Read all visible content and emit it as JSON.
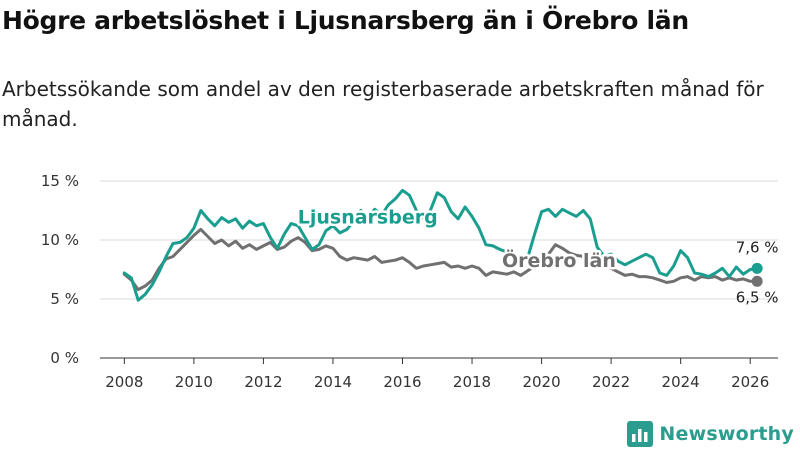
{
  "header": {
    "title": "Högre arbetslöshet i Ljusnarsberg än i Örebro län",
    "subtitle": "Arbetssökande som andel av den registerbaserade arbetskraften månad för månad."
  },
  "brand": {
    "name": "Newsworthy",
    "icon": "newsworthy-logo-icon",
    "color": "#2a9d8f"
  },
  "chart_data": {
    "type": "line",
    "title": "",
    "xlabel": "",
    "ylabel": "",
    "xlim": [
      2007.3,
      2026.8
    ],
    "ylim": [
      0,
      15
    ],
    "x_ticks": [
      "2008",
      "2010",
      "2012",
      "2014",
      "2016",
      "2018",
      "2020",
      "2022",
      "2024",
      "2026"
    ],
    "y_ticks": [
      "0 %",
      "5 %",
      "10 %",
      "15 %"
    ],
    "grid": "horizontal",
    "series": [
      {
        "name": "Ljusnarsberg",
        "color": "#1a9e8f",
        "last_label": "7,6 %",
        "points": [
          [
            2008.0,
            7.2
          ],
          [
            2008.2,
            6.8
          ],
          [
            2008.4,
            4.9
          ],
          [
            2008.6,
            5.4
          ],
          [
            2008.8,
            6.2
          ],
          [
            2009.0,
            7.3
          ],
          [
            2009.2,
            8.6
          ],
          [
            2009.4,
            9.7
          ],
          [
            2009.6,
            9.8
          ],
          [
            2009.8,
            10.2
          ],
          [
            2010.0,
            11.0
          ],
          [
            2010.2,
            12.5
          ],
          [
            2010.4,
            11.8
          ],
          [
            2010.6,
            11.2
          ],
          [
            2010.8,
            11.9
          ],
          [
            2011.0,
            11.5
          ],
          [
            2011.2,
            11.8
          ],
          [
            2011.4,
            11.0
          ],
          [
            2011.6,
            11.6
          ],
          [
            2011.8,
            11.2
          ],
          [
            2012.0,
            11.4
          ],
          [
            2012.2,
            10.2
          ],
          [
            2012.4,
            9.3
          ],
          [
            2012.6,
            10.5
          ],
          [
            2012.8,
            11.4
          ],
          [
            2013.0,
            11.2
          ],
          [
            2013.2,
            10.2
          ],
          [
            2013.4,
            9.2
          ],
          [
            2013.6,
            9.6
          ],
          [
            2013.8,
            10.8
          ],
          [
            2014.0,
            11.2
          ],
          [
            2014.2,
            10.6
          ],
          [
            2014.4,
            10.9
          ],
          [
            2014.6,
            11.6
          ],
          [
            2014.8,
            12.5
          ],
          [
            2015.0,
            12.0
          ],
          [
            2015.2,
            12.6
          ],
          [
            2015.4,
            12.1
          ],
          [
            2015.6,
            13.0
          ],
          [
            2015.8,
            13.5
          ],
          [
            2016.0,
            14.2
          ],
          [
            2016.2,
            13.8
          ],
          [
            2016.4,
            12.5
          ],
          [
            2016.6,
            11.8
          ],
          [
            2016.8,
            12.5
          ],
          [
            2017.0,
            14.0
          ],
          [
            2017.2,
            13.6
          ],
          [
            2017.4,
            12.4
          ],
          [
            2017.6,
            11.8
          ],
          [
            2017.8,
            12.8
          ],
          [
            2018.0,
            12.0
          ],
          [
            2018.2,
            11.0
          ],
          [
            2018.4,
            9.6
          ],
          [
            2018.6,
            9.5
          ],
          [
            2018.8,
            9.2
          ],
          [
            2019.0,
            9.0
          ],
          [
            2019.2,
            8.8
          ],
          [
            2019.4,
            8.2
          ],
          [
            2019.6,
            8.5
          ],
          [
            2019.8,
            10.5
          ],
          [
            2020.0,
            12.4
          ],
          [
            2020.2,
            12.6
          ],
          [
            2020.4,
            12.0
          ],
          [
            2020.6,
            12.6
          ],
          [
            2020.8,
            12.3
          ],
          [
            2021.0,
            12.0
          ],
          [
            2021.2,
            12.5
          ],
          [
            2021.4,
            11.8
          ],
          [
            2021.6,
            9.4
          ],
          [
            2021.8,
            8.6
          ],
          [
            2022.0,
            8.8
          ],
          [
            2022.2,
            8.2
          ],
          [
            2022.4,
            7.9
          ],
          [
            2022.6,
            8.2
          ],
          [
            2022.8,
            8.5
          ],
          [
            2023.0,
            8.8
          ],
          [
            2023.2,
            8.5
          ],
          [
            2023.4,
            7.2
          ],
          [
            2023.6,
            7.0
          ],
          [
            2023.8,
            7.8
          ],
          [
            2024.0,
            9.1
          ],
          [
            2024.2,
            8.5
          ],
          [
            2024.4,
            7.2
          ],
          [
            2024.6,
            7.1
          ],
          [
            2024.8,
            6.9
          ],
          [
            2025.0,
            7.2
          ],
          [
            2025.2,
            7.6
          ],
          [
            2025.4,
            6.9
          ],
          [
            2025.6,
            7.7
          ],
          [
            2025.8,
            7.1
          ],
          [
            2026.0,
            7.5
          ],
          [
            2026.2,
            7.6
          ]
        ]
      },
      {
        "name": "Örebro län",
        "color": "#707070",
        "last_label": "6,5 %",
        "points": [
          [
            2008.0,
            7.1
          ],
          [
            2008.2,
            6.6
          ],
          [
            2008.4,
            5.8
          ],
          [
            2008.6,
            6.1
          ],
          [
            2008.8,
            6.6
          ],
          [
            2009.0,
            7.6
          ],
          [
            2009.2,
            8.4
          ],
          [
            2009.4,
            8.6
          ],
          [
            2009.6,
            9.2
          ],
          [
            2009.8,
            9.8
          ],
          [
            2010.0,
            10.4
          ],
          [
            2010.2,
            10.9
          ],
          [
            2010.4,
            10.3
          ],
          [
            2010.6,
            9.7
          ],
          [
            2010.8,
            10.0
          ],
          [
            2011.0,
            9.5
          ],
          [
            2011.2,
            9.9
          ],
          [
            2011.4,
            9.3
          ],
          [
            2011.6,
            9.6
          ],
          [
            2011.8,
            9.2
          ],
          [
            2012.0,
            9.5
          ],
          [
            2012.2,
            9.8
          ],
          [
            2012.4,
            9.2
          ],
          [
            2012.6,
            9.4
          ],
          [
            2012.8,
            9.9
          ],
          [
            2013.0,
            10.2
          ],
          [
            2013.2,
            9.8
          ],
          [
            2013.4,
            9.1
          ],
          [
            2013.6,
            9.2
          ],
          [
            2013.8,
            9.5
          ],
          [
            2014.0,
            9.3
          ],
          [
            2014.2,
            8.6
          ],
          [
            2014.4,
            8.3
          ],
          [
            2014.6,
            8.5
          ],
          [
            2014.8,
            8.4
          ],
          [
            2015.0,
            8.3
          ],
          [
            2015.2,
            8.6
          ],
          [
            2015.4,
            8.1
          ],
          [
            2015.6,
            8.2
          ],
          [
            2015.8,
            8.3
          ],
          [
            2016.0,
            8.5
          ],
          [
            2016.2,
            8.1
          ],
          [
            2016.4,
            7.6
          ],
          [
            2016.6,
            7.8
          ],
          [
            2016.8,
            7.9
          ],
          [
            2017.0,
            8.0
          ],
          [
            2017.2,
            8.1
          ],
          [
            2017.4,
            7.7
          ],
          [
            2017.6,
            7.8
          ],
          [
            2017.8,
            7.6
          ],
          [
            2018.0,
            7.8
          ],
          [
            2018.2,
            7.6
          ],
          [
            2018.4,
            7.0
          ],
          [
            2018.6,
            7.3
          ],
          [
            2018.8,
            7.2
          ],
          [
            2019.0,
            7.1
          ],
          [
            2019.2,
            7.3
          ],
          [
            2019.4,
            7.0
          ],
          [
            2019.6,
            7.4
          ],
          [
            2019.8,
            7.8
          ],
          [
            2020.0,
            8.4
          ],
          [
            2020.2,
            8.8
          ],
          [
            2020.4,
            9.6
          ],
          [
            2020.6,
            9.3
          ],
          [
            2020.8,
            8.9
          ],
          [
            2021.0,
            8.7
          ],
          [
            2021.2,
            8.6
          ],
          [
            2021.4,
            8.2
          ],
          [
            2021.6,
            7.9
          ],
          [
            2021.8,
            7.8
          ],
          [
            2022.0,
            7.6
          ],
          [
            2022.2,
            7.3
          ],
          [
            2022.4,
            7.0
          ],
          [
            2022.6,
            7.1
          ],
          [
            2022.8,
            6.9
          ],
          [
            2023.0,
            6.9
          ],
          [
            2023.2,
            6.8
          ],
          [
            2023.4,
            6.6
          ],
          [
            2023.6,
            6.4
          ],
          [
            2023.8,
            6.5
          ],
          [
            2024.0,
            6.8
          ],
          [
            2024.2,
            6.9
          ],
          [
            2024.4,
            6.6
          ],
          [
            2024.6,
            6.9
          ],
          [
            2024.8,
            6.8
          ],
          [
            2025.0,
            6.9
          ],
          [
            2025.2,
            6.6
          ],
          [
            2025.4,
            6.8
          ],
          [
            2025.6,
            6.6
          ],
          [
            2025.8,
            6.7
          ],
          [
            2026.0,
            6.5
          ],
          [
            2026.2,
            6.5
          ]
        ]
      }
    ],
    "annotations": [
      {
        "text": "Ljusnarsberg",
        "series": "Ljusnarsberg",
        "x": 2015.0,
        "y": 12.0
      },
      {
        "text": "Örebro län",
        "series": "Örebro län",
        "x": 2020.5,
        "y": 8.3
      }
    ]
  }
}
